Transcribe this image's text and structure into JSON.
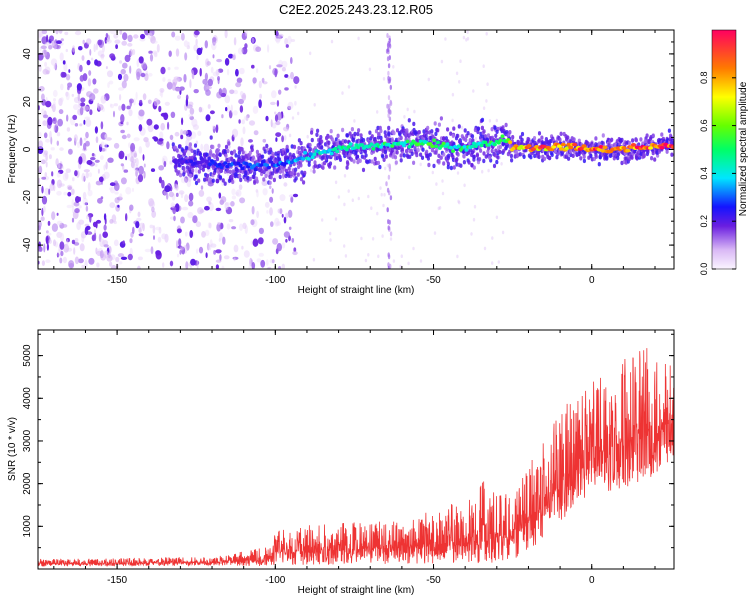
{
  "title": "C2E2.2025.243.23.12.R05",
  "chart_data": [
    {
      "type": "heatmap",
      "title": "C2E2.2025.243.23.12.R05",
      "xlabel": "Height of straight line (km)",
      "ylabel": "Frequency (Hz)",
      "xlim": [
        -175,
        26
      ],
      "ylim": [
        -50,
        50
      ],
      "xticks": [
        -150,
        -100,
        -50,
        0
      ],
      "yticks": [
        -40,
        -20,
        0,
        20,
        40
      ],
      "colorbar": {
        "label": "Normalized spectral amplitude",
        "range": [
          0.0,
          1.0
        ],
        "ticks": [
          0.0,
          0.2,
          0.4,
          0.6,
          0.8
        ]
      },
      "ridge": {
        "x": [
          -132,
          -120,
          -110,
          -100,
          -95,
          -90,
          -85,
          -80,
          -75,
          -70,
          -65,
          -60,
          -55,
          -50,
          -45,
          -40,
          -35,
          -30,
          -27,
          -25,
          -20,
          -15,
          -10,
          -5,
          0,
          5,
          10,
          15,
          20,
          25
        ],
        "freq": [
          -5,
          -6,
          -7,
          -6,
          -5,
          -3,
          -1,
          0,
          1,
          1,
          2,
          2,
          3,
          2,
          1,
          1,
          2,
          3,
          5,
          1,
          1,
          1,
          1,
          1,
          0,
          0,
          0,
          1,
          1,
          2
        ],
        "amplitude": [
          0.2,
          0.25,
          0.3,
          0.3,
          0.35,
          0.4,
          0.45,
          0.45,
          0.5,
          0.5,
          0.5,
          0.5,
          0.55,
          0.55,
          0.5,
          0.5,
          0.5,
          0.55,
          0.6,
          0.8,
          0.85,
          0.9,
          0.9,
          0.9,
          0.95,
          0.95,
          0.95,
          0.95,
          0.95,
          0.95
        ]
      },
      "noise_region_x": [
        -175,
        -97
      ]
    },
    {
      "type": "line",
      "xlabel": "Height of straight line (km)",
      "ylabel": "SNR (10 * v/v)",
      "xlim": [
        -175,
        26
      ],
      "ylim": [
        0,
        5600
      ],
      "xticks": [
        -150,
        -100,
        -50,
        0
      ],
      "yticks": [
        1000,
        2000,
        3000,
        4000,
        5000
      ],
      "color": "#ee3333",
      "series": [
        {
          "name": "SNR",
          "x": [
            -175,
            -150,
            -120,
            -101,
            -100,
            -90,
            -80,
            -70,
            -60,
            -50,
            -40,
            -35,
            -30,
            -25,
            -20,
            -15,
            -10,
            -5,
            0,
            5,
            10,
            15,
            20,
            25
          ],
          "baseline": [
            120,
            130,
            160,
            230,
            400,
            420,
            450,
            480,
            500,
            560,
            700,
            850,
            800,
            700,
            1150,
            1500,
            2000,
            2400,
            2700,
            2800,
            3000,
            3200,
            3300,
            3400
          ],
          "amplitude": [
            110,
            120,
            140,
            300,
            550,
            600,
            650,
            650,
            700,
            800,
            1000,
            1300,
            1200,
            900,
            1300,
            1500,
            1700,
            1700,
            1700,
            1800,
            2000,
            2200,
            2000,
            1500
          ]
        }
      ]
    }
  ]
}
